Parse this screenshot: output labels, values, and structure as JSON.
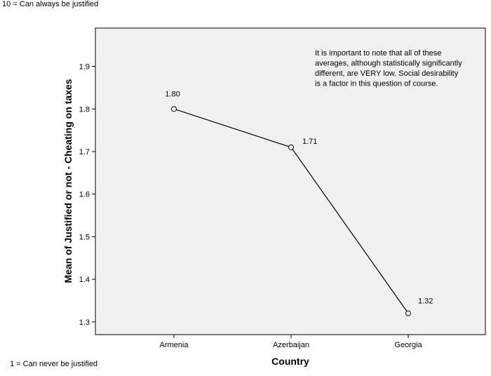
{
  "notes": {
    "top": "10 = Can always be justified",
    "bottom": "1 = Can never be justified"
  },
  "chart_data": {
    "type": "line",
    "title": "",
    "xlabel": "Country",
    "ylabel": "Mean of Justified or not - Cheating on taxes",
    "categories": [
      "Armenia",
      "Azerbaijan",
      "Georgia"
    ],
    "series": [
      {
        "values": [
          1.8,
          1.71,
          1.32
        ],
        "data_labels": [
          "1.80",
          "1.71",
          "1.32"
        ]
      }
    ],
    "ylim": [
      1.27,
      1.99
    ],
    "yticks": [
      1.3,
      1.4,
      1.5,
      1.6,
      1.7,
      1.8,
      1.9
    ],
    "ytick_labels": [
      "1.3",
      "1.4",
      "1.5",
      "1.6",
      "1.7",
      "1.8",
      "1.9"
    ],
    "grid": false,
    "annotation": [
      "It is important to note that all of these",
      "averages, although statistically significantly",
      "different, are VERY low.  Social desirability",
      "is a factor in this question of course."
    ],
    "colors": {
      "plot_background": "#f0f0f0",
      "line": "#000000",
      "marker_fill": "#ffffff"
    }
  }
}
